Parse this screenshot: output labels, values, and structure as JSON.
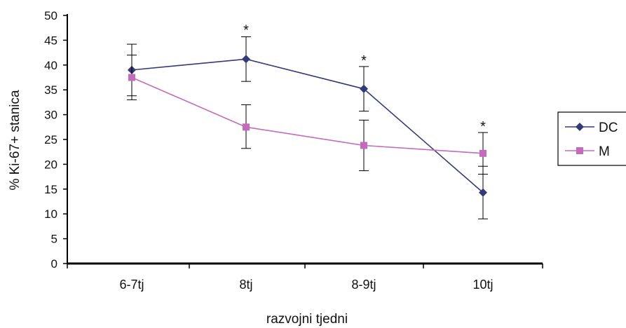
{
  "chart_data": {
    "type": "line",
    "title": "",
    "xlabel": "razvojni tjedni",
    "ylabel": "% Ki-67+ stanica",
    "ylim": [
      0,
      50
    ],
    "yticks": [
      0,
      5,
      10,
      15,
      20,
      25,
      30,
      35,
      40,
      45,
      50
    ],
    "categories": [
      "6-7tj",
      "8tj",
      "8-9tj",
      "10tj"
    ],
    "grid": false,
    "legend": "right",
    "series": [
      {
        "name": "DC",
        "color": "#333a78",
        "marker": "diamond",
        "values": [
          39.0,
          41.2,
          35.2,
          14.3
        ],
        "error_low": [
          33.8,
          36.7,
          30.7,
          9.0
        ],
        "error_high": [
          44.2,
          45.7,
          39.7,
          19.6
        ]
      },
      {
        "name": "M",
        "color": "#c46bbc",
        "marker": "square",
        "values": [
          37.5,
          27.5,
          23.8,
          22.2
        ],
        "error_low": [
          33.0,
          23.2,
          18.7,
          18.0
        ],
        "error_high": [
          42.0,
          32.0,
          28.9,
          26.4
        ]
      }
    ],
    "annotations": [
      {
        "text": "*",
        "category": "8tj",
        "y": 47.5
      },
      {
        "text": "*",
        "category": "8-9tj",
        "y": 41.4
      },
      {
        "text": "*",
        "category": "10tj",
        "y": 28.1
      }
    ]
  }
}
